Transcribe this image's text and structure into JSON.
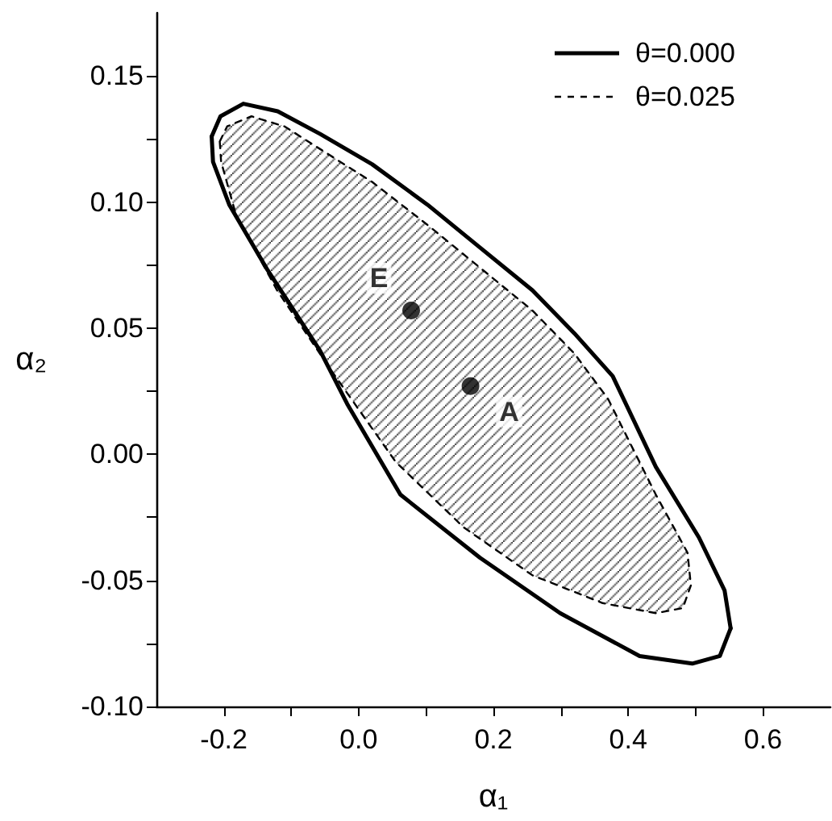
{
  "chart_data": {
    "type": "line",
    "xlabel": "α₁",
    "ylabel": "α₂",
    "xlim": [
      -0.3,
      0.7
    ],
    "ylim": [
      -0.1,
      0.175
    ],
    "xticks": [
      -0.2,
      {
        "value": -0.1,
        "label": null
      },
      {
        "value": 0,
        "label": "0.0"
      },
      {
        "value": 0.1,
        "label": null
      },
      0.2,
      {
        "value": 0.3,
        "label": null
      },
      0.4,
      {
        "value": 0.5,
        "label": null
      },
      0.6
    ],
    "yticks": [
      {
        "value": -0.1,
        "label": "-0.10"
      },
      {
        "value": -0.075,
        "label": null
      },
      -0.05,
      {
        "value": -0.025,
        "label": null
      },
      {
        "value": 0,
        "label": "0.00"
      },
      {
        "value": 0.025,
        "label": null
      },
      0.05,
      {
        "value": 0.075,
        "label": null
      },
      {
        "value": 0.1,
        "label": "0.10"
      },
      {
        "value": 0.125,
        "label": null
      },
      0.15
    ],
    "grid": false,
    "legend": "top right",
    "series": [
      {
        "name": "θ=0.000",
        "color": "#000000",
        "line_style": "solid",
        "marker": "none",
        "x": [
          -0.218,
          -0.205,
          -0.171,
          -0.12,
          -0.057,
          0.02,
          0.102,
          0.18,
          0.258,
          0.32,
          0.377,
          0.441,
          0.505,
          0.543,
          0.552
        ],
        "values": [
          0.126,
          0.134,
          0.139,
          0.136,
          0.127,
          0.115,
          0.099,
          0.082,
          0.065,
          0.048,
          0.031,
          -0.005,
          -0.033,
          -0.054,
          -0.069
        ]
      },
      {
        "color": "#000000",
        "line_style": "solid",
        "marker": "none",
        "x": [
          -0.218,
          -0.216,
          -0.192,
          -0.135,
          -0.057,
          -0.017,
          0.062,
          0.18,
          0.299,
          0.417,
          0.495,
          0.536,
          0.552
        ],
        "values": [
          0.126,
          0.116,
          0.099,
          0.073,
          0.041,
          0.02,
          -0.016,
          -0.041,
          -0.063,
          -0.08,
          -0.083,
          -0.08,
          -0.069
        ]
      },
      {
        "name": "θ=0.025",
        "type": "area",
        "color": "#000000",
        "line_style": "dashed",
        "marker": "none",
        "x": [
          -0.206,
          -0.195,
          -0.159,
          -0.11,
          -0.057,
          0.02,
          0.102,
          0.18,
          0.258,
          0.32,
          0.37,
          0.441,
          0.488,
          0.493,
          0.481,
          0.441,
          0.362,
          0.258,
          0.156,
          0.055,
          -0.04,
          -0.121,
          -0.182,
          -0.204,
          -0.206
        ],
        "values": [
          0.124,
          0.13,
          0.134,
          0.13,
          0.121,
          0.108,
          0.091,
          0.074,
          0.057,
          0.04,
          0.022,
          -0.016,
          -0.039,
          -0.052,
          -0.061,
          -0.063,
          -0.059,
          -0.048,
          -0.029,
          -0.003,
          0.033,
          0.065,
          0.095,
          0.116,
          0.124
        ]
      },
      {
        "type": "scatter",
        "color": "#000000",
        "marker": "circle",
        "x": [
          0.078,
          0.166
        ],
        "values": [
          0.057,
          0.027
        ]
      }
    ],
    "annotations": [
      {
        "text": "E",
        "x": 0.078,
        "y": 0.057
      },
      {
        "text": "A",
        "x": 0.166,
        "y": 0.027
      }
    ]
  }
}
